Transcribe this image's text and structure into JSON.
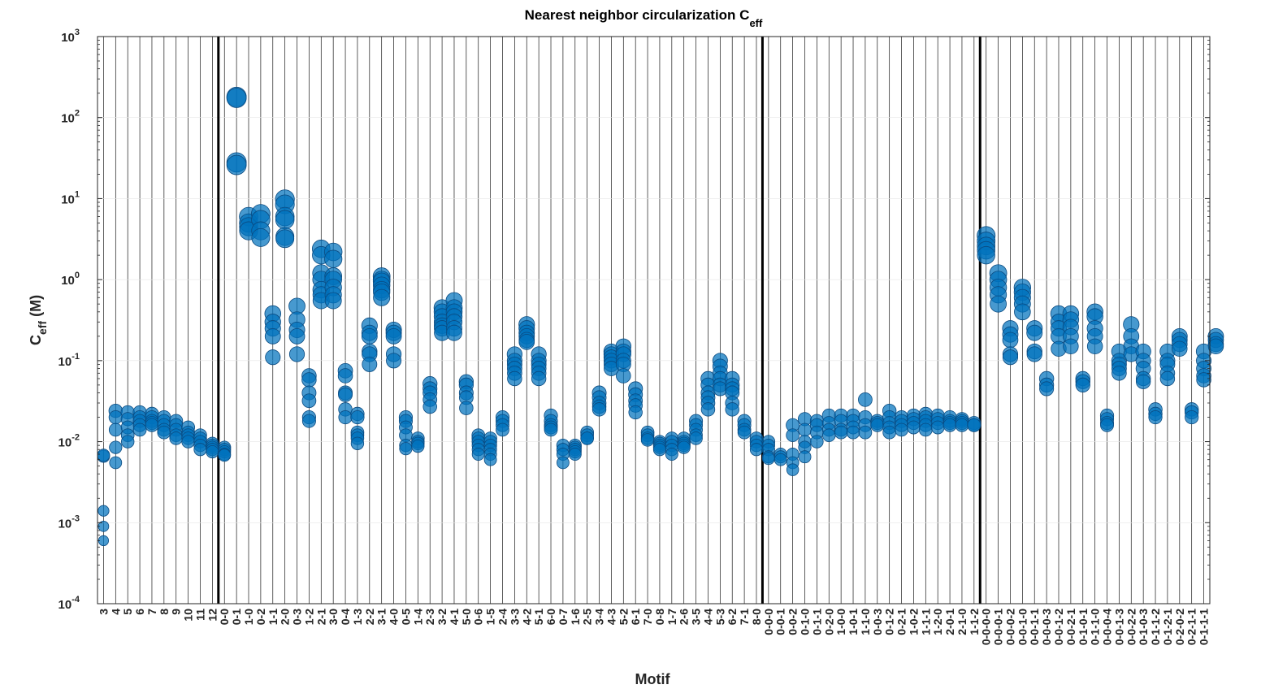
{
  "chart_data": {
    "type": "scatter",
    "title": "Nearest neighbor circularization C",
    "title_sub": "eff",
    "xlabel": "Motif",
    "ylabel_main": "C",
    "ylabel_sub": "eff",
    "ylabel_unit": " (M)",
    "yscale": "log",
    "ylim": [
      0.0001,
      1000
    ],
    "yticks": [
      {
        "base": "10",
        "exp": "-4"
      },
      {
        "base": "10",
        "exp": "-3"
      },
      {
        "base": "10",
        "exp": "-2"
      },
      {
        "base": "10",
        "exp": "-1"
      },
      {
        "base": "10",
        "exp": "0"
      },
      {
        "base": "10",
        "exp": "1"
      },
      {
        "base": "10",
        "exp": "2"
      },
      {
        "base": "10",
        "exp": "3"
      }
    ],
    "grid": true,
    "marker_color": "#0072BD",
    "group_separators_after": [
      "12",
      "8-0",
      "1-1-2"
    ],
    "categories": [
      "3",
      "4",
      "5",
      "6",
      "7",
      "8",
      "9",
      "10",
      "11",
      "12",
      "0-0",
      "0-1",
      "1-0",
      "0-2",
      "1-1",
      "2-0",
      "0-3",
      "1-2",
      "2-1",
      "3-0",
      "0-4",
      "1-3",
      "2-2",
      "3-1",
      "4-0",
      "0-5",
      "1-4",
      "2-3",
      "3-2",
      "4-1",
      "5-0",
      "0-6",
      "1-5",
      "2-4",
      "3-3",
      "4-2",
      "5-1",
      "6-0",
      "0-7",
      "1-6",
      "2-5",
      "3-4",
      "4-3",
      "5-2",
      "6-1",
      "7-0",
      "0-8",
      "1-7",
      "2-6",
      "3-5",
      "4-4",
      "5-3",
      "6-2",
      "7-1",
      "8-0",
      "0-0-0",
      "0-0-1",
      "0-0-2",
      "0-1-0",
      "0-1-1",
      "0-2-0",
      "1-0-0",
      "1-0-1",
      "1-1-0",
      "0-0-3",
      "0-1-2",
      "0-2-1",
      "1-0-2",
      "1-1-1",
      "1-2-0",
      "2-0-1",
      "2-1-0",
      "1-1-2",
      "0-0-0-0",
      "0-0-0-1",
      "0-0-0-2",
      "0-0-1-0",
      "0-0-1-1",
      "0-0-0-3",
      "0-0-1-2",
      "0-0-2-1",
      "0-1-0-1",
      "0-1-1-0",
      "0-0-0-4",
      "0-0-1-3",
      "0-0-2-2",
      "0-1-0-3",
      "0-1-1-2",
      "0-1-2-1",
      "0-2-0-2",
      "0-2-1-1",
      "0-1-1-1"
    ],
    "labeled_categories": [
      "3",
      "4",
      "5",
      "6",
      "7",
      "8",
      "9",
      "10",
      "11",
      "12",
      "0-0",
      "0-1",
      "1-0",
      "0-2",
      "1-1",
      "2-0",
      "0-3",
      "1-2",
      "2-1",
      "3-0",
      "0-4",
      "1-3",
      "2-2",
      "3-1",
      "4-0",
      "0-5",
      "1-4",
      "2-3",
      "3-2",
      "4-1",
      "5-0",
      "0-6",
      "1-5",
      "2-4",
      "3-3",
      "4-2",
      "5-1",
      "6-0",
      "0-7",
      "1-6",
      "2-5",
      "3-4",
      "4-3",
      "5-2",
      "6-1",
      "7-0",
      "0-8",
      "1-7",
      "2-6",
      "3-5",
      "4-4",
      "5-3",
      "6-2",
      "7-1",
      "8-0",
      "0-0-0",
      "0-0-1",
      "0-0-2",
      "0-1-0",
      "0-1-1",
      "0-2-0",
      "1-0-0",
      "1-0-1",
      "1-1-0",
      "0-0-3",
      "0-1-2",
      "0-2-1",
      "1-0-2",
      "1-1-1",
      "1-2-0",
      "2-0-1",
      "2-1-0",
      "1-1-2",
      "0-0-0-0",
      "0-0-0-1",
      "0-0-0-2",
      "0-0-1-0",
      "0-0-1-1",
      "0-0-0-3",
      "0-0-1-2",
      "0-0-2-1",
      "0-1-0-1",
      "0-1-1-0",
      "0-0-0-4",
      "0-0-1-3",
      "0-0-2-2",
      "0-1-0-3",
      "0-1-1-2",
      "0-1-2-1",
      "0-2-0-2",
      "0-2-1-1",
      "0-1-1-1"
    ],
    "series": [
      {
        "values": [
          0.0066,
          0.0068,
          0.0014,
          0.0009,
          0.0006
        ]
      },
      {
        "values": [
          0.024,
          0.02,
          0.014,
          0.0085,
          0.0055
        ]
      },
      {
        "values": [
          0.023,
          0.019,
          0.015,
          0.012,
          0.01
        ]
      },
      {
        "values": [
          0.023,
          0.02,
          0.018,
          0.016,
          0.014
        ]
      },
      {
        "values": [
          0.022,
          0.02,
          0.018,
          0.017,
          0.016
        ]
      },
      {
        "values": [
          0.02,
          0.018,
          0.016,
          0.014,
          0.013
        ]
      },
      {
        "values": [
          0.018,
          0.016,
          0.014,
          0.012,
          0.011
        ]
      },
      {
        "values": [
          0.015,
          0.013,
          0.012,
          0.011,
          0.01
        ]
      },
      {
        "values": [
          0.012,
          0.011,
          0.01,
          0.009,
          0.008
        ]
      },
      {
        "values": [
          0.0095,
          0.009,
          0.0085,
          0.008,
          0.0075
        ]
      },
      {
        "values": [
          0.0085,
          0.008,
          0.0075,
          0.007,
          0.0068
        ]
      },
      {
        "values": [
          180,
          175,
          28,
          26
        ]
      },
      {
        "values": [
          6,
          5,
          4.5,
          4
        ]
      },
      {
        "values": [
          6.5,
          5.5,
          4,
          3.3
        ]
      },
      {
        "values": [
          0.38,
          0.3,
          0.25,
          0.2,
          0.11
        ]
      },
      {
        "values": [
          9.8,
          8.5,
          6,
          5.5,
          3.4,
          3.2
        ]
      },
      {
        "values": [
          0.47,
          0.32,
          0.24,
          0.2,
          0.12
        ]
      },
      {
        "values": [
          0.065,
          0.058,
          0.04,
          0.032,
          0.02,
          0.018
        ]
      },
      {
        "values": [
          2.4,
          2,
          1.2,
          1,
          0.75,
          0.65,
          0.55
        ]
      },
      {
        "values": [
          2.2,
          1.8,
          1.1,
          1,
          0.8,
          0.65,
          0.55
        ]
      },
      {
        "values": [
          0.075,
          0.065,
          0.04,
          0.038,
          0.025,
          0.02
        ]
      },
      {
        "values": [
          0.022,
          0.02,
          0.013,
          0.012,
          0.011,
          0.0095
        ]
      },
      {
        "values": [
          0.27,
          0.22,
          0.2,
          0.13,
          0.12,
          0.09
        ]
      },
      {
        "values": [
          1.1,
          1,
          0.95,
          0.85,
          0.75,
          0.7,
          0.6
        ]
      },
      {
        "values": [
          0.24,
          0.22,
          0.2,
          0.12,
          0.1
        ]
      },
      {
        "values": [
          0.02,
          0.018,
          0.015,
          0.012,
          0.009,
          0.0082
        ]
      },
      {
        "values": [
          0.011,
          0.01,
          0.0095,
          0.0088
        ]
      },
      {
        "values": [
          0.052,
          0.045,
          0.04,
          0.033,
          0.027
        ]
      },
      {
        "values": [
          0.45,
          0.4,
          0.35,
          0.3,
          0.27,
          0.25,
          0.22
        ]
      },
      {
        "values": [
          0.55,
          0.45,
          0.4,
          0.35,
          0.3,
          0.25,
          0.22
        ]
      },
      {
        "values": [
          0.055,
          0.05,
          0.04,
          0.035,
          0.026
        ]
      },
      {
        "values": [
          0.012,
          0.011,
          0.01,
          0.009,
          0.008,
          0.007
        ]
      },
      {
        "values": [
          0.011,
          0.01,
          0.009,
          0.008,
          0.007,
          0.006
        ]
      },
      {
        "values": [
          0.02,
          0.018,
          0.016,
          0.014
        ]
      },
      {
        "values": [
          0.12,
          0.1,
          0.09,
          0.08,
          0.07,
          0.06
        ]
      },
      {
        "values": [
          0.28,
          0.25,
          0.22,
          0.2,
          0.18,
          0.17
        ]
      },
      {
        "values": [
          0.12,
          0.1,
          0.09,
          0.08,
          0.07,
          0.06
        ]
      },
      {
        "values": [
          0.021,
          0.018,
          0.016,
          0.015,
          0.014
        ]
      },
      {
        "values": [
          0.009,
          0.008,
          0.007,
          0.0055
        ]
      },
      {
        "values": [
          0.009,
          0.0085,
          0.008,
          0.0075,
          0.007
        ]
      },
      {
        "values": [
          0.013,
          0.012,
          0.011,
          0.011
        ]
      },
      {
        "values": [
          0.04,
          0.035,
          0.03,
          0.027,
          0.025
        ]
      },
      {
        "values": [
          0.13,
          0.12,
          0.11,
          0.1,
          0.09,
          0.08
        ]
      },
      {
        "values": [
          0.15,
          0.13,
          0.12,
          0.1,
          0.09,
          0.065
        ]
      },
      {
        "values": [
          0.045,
          0.038,
          0.032,
          0.028,
          0.023
        ]
      },
      {
        "values": [
          0.013,
          0.012,
          0.011,
          0.0105
        ]
      },
      {
        "values": [
          0.01,
          0.0095,
          0.009,
          0.0085,
          0.008
        ]
      },
      {
        "values": [
          0.011,
          0.01,
          0.009,
          0.008,
          0.007
        ]
      },
      {
        "values": [
          0.011,
          0.01,
          0.0095,
          0.009,
          0.0085
        ]
      },
      {
        "values": [
          0.018,
          0.016,
          0.014,
          0.012,
          0.011
        ]
      },
      {
        "values": [
          0.06,
          0.05,
          0.04,
          0.035,
          0.03,
          0.025
        ]
      },
      {
        "values": [
          0.1,
          0.085,
          0.07,
          0.06,
          0.05,
          0.045
        ]
      },
      {
        "values": [
          0.06,
          0.05,
          0.045,
          0.04,
          0.03,
          0.025
        ]
      },
      {
        "values": [
          0.018,
          0.016,
          0.014,
          0.013
        ]
      },
      {
        "values": [
          0.011,
          0.01,
          0.009,
          0.008
        ]
      },
      {
        "values": [
          0.01,
          0.009,
          0.008,
          0.0065,
          0.0062
        ]
      },
      {
        "values": [
          0.007,
          0.0065,
          0.006
        ]
      },
      {
        "values": [
          0.016,
          0.012,
          0.007,
          0.0055,
          0.0045
        ]
      },
      {
        "values": [
          0.019,
          0.014,
          0.01,
          0.0085,
          0.0065
        ]
      },
      {
        "values": [
          0.018,
          0.016,
          0.013,
          0.01
        ]
      },
      {
        "values": [
          0.021,
          0.017,
          0.014,
          0.012
        ]
      },
      {
        "values": [
          0.021,
          0.018,
          0.014,
          0.013
        ]
      },
      {
        "values": [
          0.021,
          0.018,
          0.015,
          0.013
        ]
      },
      {
        "values": [
          0.033,
          0.02,
          0.016,
          0.013
        ]
      },
      {
        "values": [
          0.018,
          0.017,
          0.016
        ]
      },
      {
        "values": [
          0.024,
          0.02,
          0.017,
          0.015,
          0.013
        ]
      },
      {
        "values": [
          0.02,
          0.018,
          0.016,
          0.014
        ]
      },
      {
        "values": [
          0.021,
          0.019,
          0.017,
          0.015
        ]
      },
      {
        "values": [
          0.022,
          0.02,
          0.018,
          0.016,
          0.014
        ]
      },
      {
        "values": [
          0.021,
          0.019,
          0.017,
          0.015
        ]
      },
      {
        "values": [
          0.02,
          0.018,
          0.017,
          0.016
        ]
      },
      {
        "values": [
          0.019,
          0.018,
          0.017,
          0.016
        ]
      },
      {
        "values": [
          0.017,
          0.016,
          0.016
        ]
      },
      {
        "values": [
          3.5,
          3,
          2.6,
          2.3,
          2
        ]
      },
      {
        "values": [
          1.2,
          1,
          0.8,
          0.65,
          0.5
        ]
      },
      {
        "values": [
          0.25,
          0.21,
          0.18,
          0.12,
          0.11
        ]
      },
      {
        "values": [
          0.8,
          0.7,
          0.6,
          0.5,
          0.4
        ]
      },
      {
        "values": [
          0.25,
          0.22,
          0.13,
          0.12
        ]
      },
      {
        "values": [
          0.06,
          0.05,
          0.045
        ]
      },
      {
        "values": [
          0.38,
          0.3,
          0.25,
          0.2,
          0.14
        ]
      },
      {
        "values": [
          0.38,
          0.32,
          0.26,
          0.2,
          0.15
        ]
      },
      {
        "values": [
          0.06,
          0.055,
          0.05
        ]
      },
      {
        "values": [
          0.4,
          0.35,
          0.25,
          0.2,
          0.15
        ]
      },
      {
        "values": [
          0.021,
          0.019,
          0.017,
          0.016
        ]
      },
      {
        "values": [
          0.13,
          0.1,
          0.09,
          0.08,
          0.07
        ]
      },
      {
        "values": [
          0.28,
          0.2,
          0.15,
          0.12
        ]
      },
      {
        "values": [
          0.13,
          0.1,
          0.08,
          0.06,
          0.055
        ]
      },
      {
        "values": [
          0.025,
          0.022,
          0.02
        ]
      },
      {
        "values": [
          0.13,
          0.1,
          0.09,
          0.07,
          0.06
        ]
      },
      {
        "values": [
          0.2,
          0.18,
          0.16,
          0.14
        ]
      },
      {
        "values": [
          0.025,
          0.023,
          0.02
        ]
      },
      {
        "values": [
          0.13,
          0.1,
          0.08,
          0.065,
          0.058
        ]
      },
      {
        "values": [
          0.2,
          0.18,
          0.16,
          0.15
        ]
      }
    ]
  }
}
